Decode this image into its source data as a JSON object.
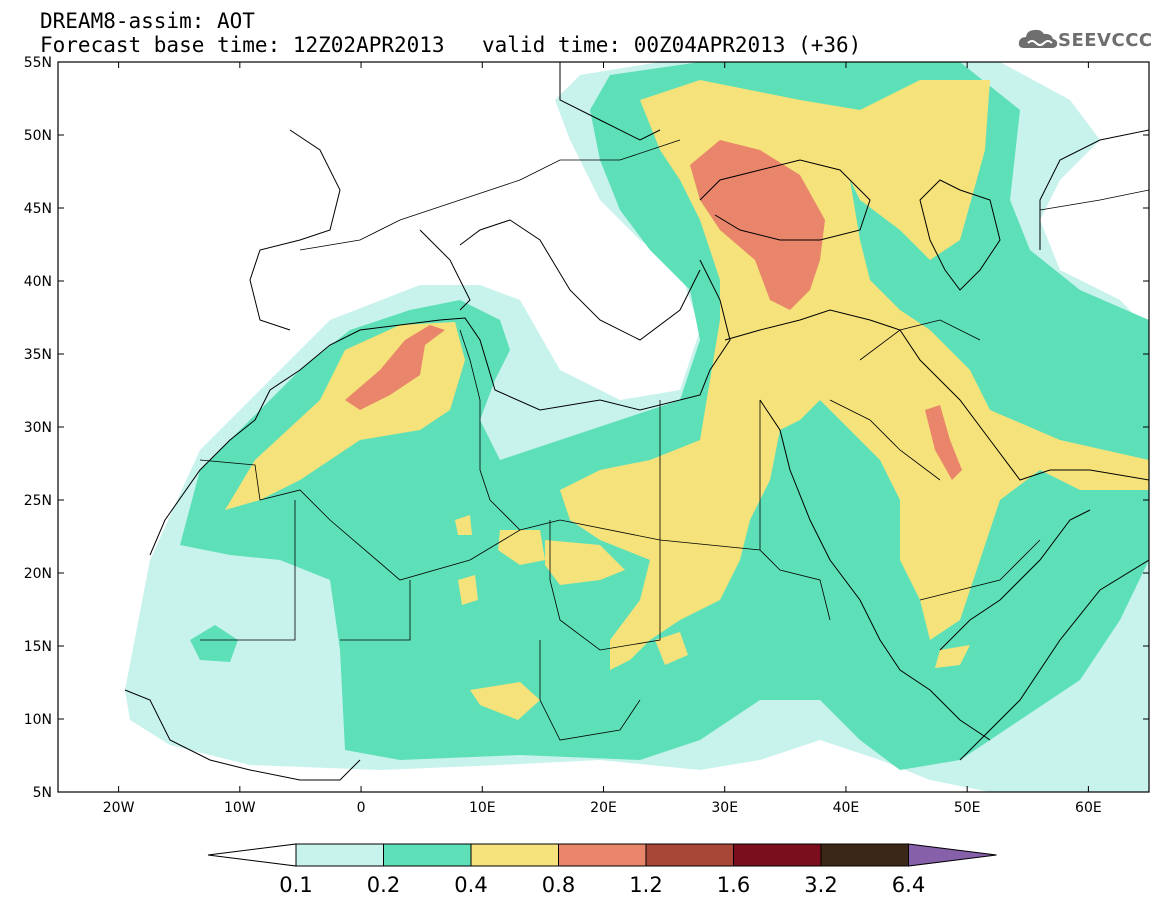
{
  "header": {
    "line1": "DREAM8-assim: AOT",
    "line2_base": "Forecast base time: 12Z02APR2013",
    "line2_valid": "valid time: 00Z04APR2013 (+36)"
  },
  "logo": {
    "text": "SEEVCCC",
    "icon": "cloud-icon"
  },
  "map": {
    "lat_labels": [
      "55N",
      "50N",
      "45N",
      "40N",
      "35N",
      "30N",
      "25N",
      "20N",
      "15N",
      "10N",
      "5N"
    ],
    "lon_labels": [
      "20W",
      "10W",
      "0",
      "10E",
      "20E",
      "30E",
      "40E",
      "50E",
      "60E"
    ],
    "extent": {
      "lon_min": -25,
      "lon_max": 65,
      "lat_min": 5,
      "lat_max": 55
    }
  },
  "colorbar": {
    "labels": [
      "0.1",
      "0.2",
      "0.4",
      "0.8",
      "1.2",
      "1.6",
      "3.2",
      "6.4"
    ],
    "colors": [
      "#ffffff",
      "#c8f2ec",
      "#5de0b8",
      "#f5e27a",
      "#e9856a",
      "#a84638",
      "#7a0e1c",
      "#3b2718",
      "#8660a8"
    ]
  },
  "field_colors": {
    "aot_0_1_0_2": "#c8f2ec",
    "aot_0_2_0_4": "#5de0b8",
    "aot_0_4_0_8": "#f5e27a",
    "aot_0_8_1_2": "#e9856a"
  }
}
